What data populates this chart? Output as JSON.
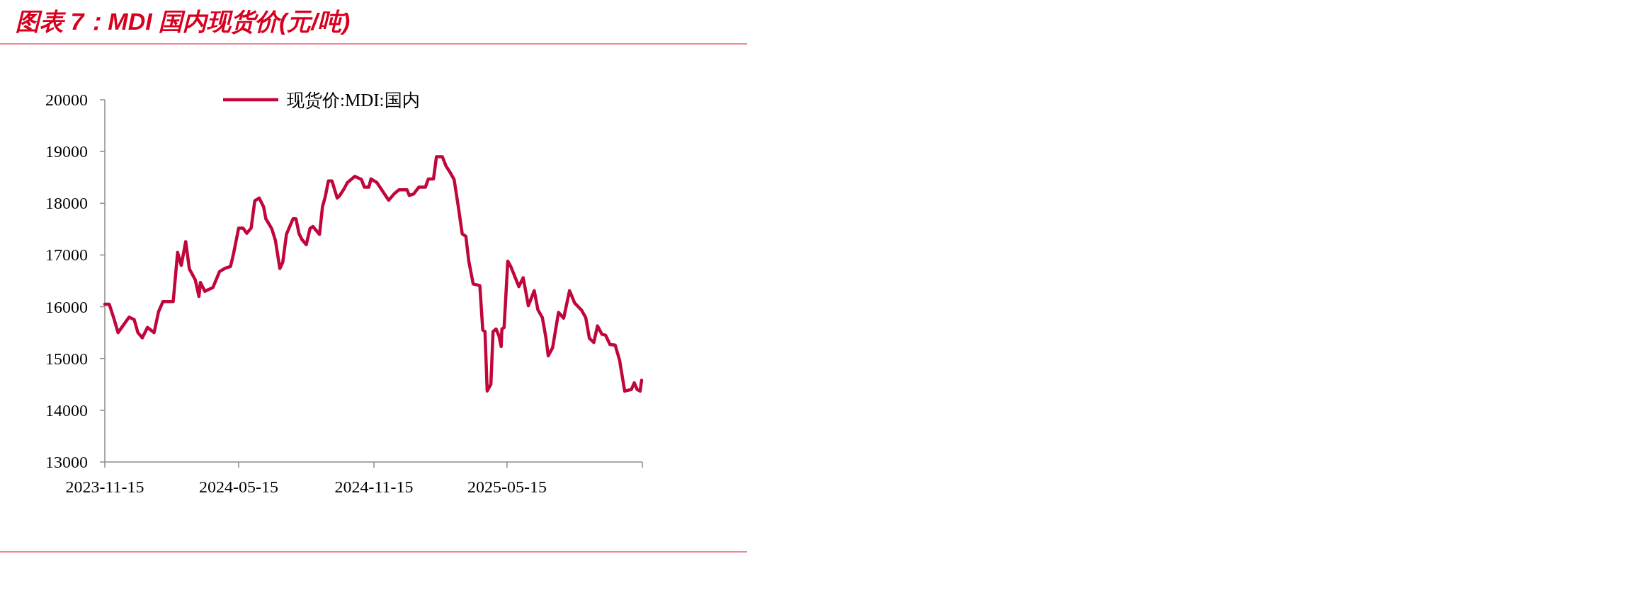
{
  "chart_data": {
    "type": "line",
    "title": "图表 7：MDI 国内现货价(元/吨)",
    "legend": "top",
    "x": [
      "2023-11-15",
      "2023-11-21",
      "2023-11-27",
      "2023-12-03",
      "2023-12-08",
      "2023-12-18",
      "2023-12-25",
      "2023-12-30",
      "2024-01-05",
      "2024-01-12",
      "2024-01-21",
      "2024-01-27",
      "2024-02-02",
      "2024-02-16",
      "2024-02-22",
      "2024-02-27",
      "2024-03-04",
      "2024-03-09",
      "2024-03-17",
      "2024-03-22",
      "2024-03-24",
      "2024-03-30",
      "2024-04-10",
      "2024-04-19",
      "2024-04-26",
      "2024-05-04",
      "2024-05-08",
      "2024-05-15",
      "2024-05-21",
      "2024-05-26",
      "2024-06-01",
      "2024-06-06",
      "2024-06-12",
      "2024-06-18",
      "2024-06-21",
      "2024-06-29",
      "2024-07-04",
      "2024-07-10",
      "2024-07-14",
      "2024-07-19",
      "2024-07-28",
      "2024-08-01",
      "2024-08-05",
      "2024-08-09",
      "2024-08-15",
      "2024-08-20",
      "2024-08-24",
      "2024-09-02",
      "2024-09-06",
      "2024-09-10",
      "2024-09-14",
      "2024-09-19",
      "2024-09-26",
      "2024-09-29",
      "2024-10-05",
      "2024-10-10",
      "2024-10-20",
      "2024-10-29",
      "2024-11-02",
      "2024-11-08",
      "2024-11-11",
      "2024-11-19",
      "2024-11-26",
      "2024-12-05",
      "2024-12-13",
      "2024-12-19",
      "2024-12-30",
      "2025-01-02",
      "2025-01-08",
      "2025-01-15",
      "2025-01-24",
      "2025-01-28",
      "2025-02-04",
      "2025-02-08",
      "2025-02-16",
      "2025-02-21",
      "2025-02-26",
      "2025-03-04",
      "2025-03-10",
      "2025-03-15",
      "2025-03-20",
      "2025-03-24",
      "2025-03-30",
      "2025-04-08",
      "2025-04-12",
      "2025-04-15",
      "2025-04-18",
      "2025-04-23",
      "2025-04-26",
      "2025-04-30",
      "2025-05-04",
      "2025-05-07",
      "2025-05-08",
      "2025-05-11",
      "2025-05-16",
      "2025-05-20",
      "2025-05-26",
      "2025-05-31",
      "2025-06-06",
      "2025-06-13",
      "2025-06-21",
      "2025-06-26",
      "2025-07-02",
      "2025-07-07",
      "2025-07-10",
      "2025-07-16",
      "2025-07-24",
      "2025-07-31",
      "2025-08-08",
      "2025-08-15",
      "2025-08-24",
      "2025-08-30",
      "2025-09-04",
      "2025-09-10",
      "2025-09-15",
      "2025-09-21",
      "2025-09-26",
      "2025-10-02",
      "2025-10-09",
      "2025-10-15",
      "2025-10-22",
      "2025-10-31",
      "2025-11-04",
      "2025-11-08",
      "2025-11-12",
      "2025-11-14"
    ],
    "series": [
      {
        "name": "现货价:MDI:国内",
        "color": "#c0063a",
        "values": [
          16050,
          16050,
          15790,
          15500,
          15600,
          15800,
          15750,
          15500,
          15400,
          15600,
          15500,
          15900,
          16100,
          16100,
          17050,
          16800,
          17260,
          16730,
          16520,
          16200,
          16470,
          16300,
          16370,
          16680,
          16740,
          16780,
          17020,
          17520,
          17520,
          17420,
          17520,
          18050,
          18100,
          17930,
          17700,
          17510,
          17280,
          16740,
          16860,
          17400,
          17700,
          17700,
          17420,
          17300,
          17200,
          17510,
          17550,
          17400,
          17930,
          18140,
          18430,
          18430,
          18100,
          18140,
          18270,
          18400,
          18520,
          18460,
          18310,
          18310,
          18470,
          18400,
          18250,
          18060,
          18190,
          18260,
          18260,
          18150,
          18180,
          18310,
          18310,
          18470,
          18470,
          18900,
          18900,
          18720,
          18610,
          18460,
          17910,
          17410,
          17360,
          16880,
          16440,
          16410,
          15550,
          15520,
          14370,
          14500,
          15520,
          15570,
          15440,
          15230,
          15570,
          15600,
          16880,
          16780,
          16570,
          16390,
          16560,
          16020,
          16310,
          15940,
          15790,
          15390,
          15050,
          15210,
          15890,
          15780,
          16310,
          16070,
          15940,
          15790,
          15390,
          15310,
          15630,
          15470,
          15450,
          15270,
          15260,
          14970,
          14370,
          14400,
          14530,
          14400,
          14370,
          14580
        ]
      }
    ],
    "xlim": [
      "2023-11-15",
      "2025-11-15"
    ],
    "xticks": [
      "2023-11-15",
      "2024-05-15",
      "2024-11-15",
      "2025-05-15",
      {
        "value": "2025-11-15",
        "label": null
      }
    ],
    "ylim": [
      13000,
      20000
    ],
    "yticks": [
      13000,
      14000,
      15000,
      16000,
      17000,
      18000,
      19000,
      20000
    ]
  }
}
